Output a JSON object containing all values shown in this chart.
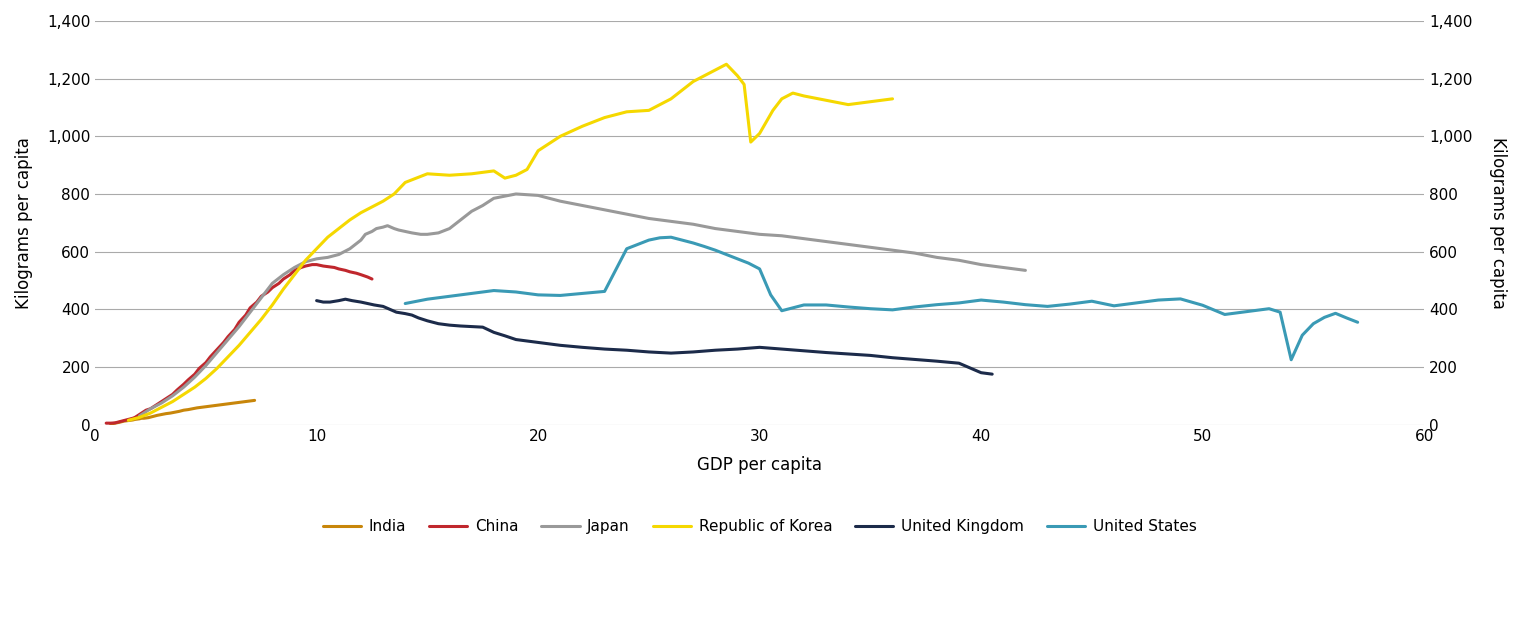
{
  "xlabel": "GDP per capita",
  "ylabel": "Kilograms per capita",
  "xlim": [
    0,
    60
  ],
  "ylim": [
    0,
    1400
  ],
  "xticks": [
    0,
    10,
    20,
    30,
    40,
    50,
    60
  ],
  "yticks": [
    0,
    200,
    400,
    600,
    800,
    1000,
    1200,
    1400
  ],
  "background_color": "#ffffff",
  "grid_color": "#aaaaaa",
  "series": {
    "India": {
      "color": "#C8860A",
      "gdp": [
        0.7,
        0.9,
        1.1,
        1.3,
        1.5,
        1.7,
        1.8,
        2.0,
        2.1,
        2.2,
        2.4,
        2.5,
        2.6,
        2.7,
        2.8,
        3.0,
        3.2,
        3.4,
        3.6,
        3.8,
        4.0,
        4.2,
        4.4,
        4.6,
        4.8,
        5.0,
        5.2,
        5.4,
        5.6,
        5.8,
        6.0,
        6.2,
        6.4,
        6.6,
        6.8,
        7.0,
        7.2
      ],
      "steel": [
        2,
        5,
        8,
        12,
        14,
        16,
        18,
        20,
        22,
        22,
        24,
        26,
        28,
        30,
        32,
        35,
        38,
        40,
        43,
        46,
        50,
        52,
        55,
        58,
        60,
        62,
        64,
        66,
        68,
        70,
        72,
        74,
        76,
        78,
        80,
        82,
        84
      ]
    },
    "China": {
      "color": "#C0272D",
      "gdp": [
        0.5,
        0.7,
        0.9,
        1.0,
        1.1,
        1.2,
        1.3,
        1.4,
        1.5,
        1.6,
        1.7,
        1.8,
        1.9,
        2.0,
        2.1,
        2.2,
        2.3,
        2.5,
        2.7,
        2.9,
        3.1,
        3.3,
        3.5,
        3.7,
        4.0,
        4.2,
        4.5,
        4.7,
        5.0,
        5.2,
        5.5,
        5.8,
        6.0,
        6.3,
        6.5,
        6.8,
        7.0,
        7.3,
        7.5,
        7.8,
        8.0,
        8.3,
        8.5,
        8.8,
        9.0,
        9.3,
        9.5,
        9.8,
        10.0,
        10.3,
        10.5,
        10.8,
        11.0,
        11.3,
        11.5,
        11.8,
        12.0,
        12.3,
        12.5
      ],
      "steel": [
        5,
        5,
        6,
        8,
        10,
        12,
        14,
        16,
        18,
        20,
        22,
        25,
        30,
        35,
        40,
        45,
        50,
        55,
        65,
        75,
        85,
        95,
        105,
        120,
        140,
        155,
        175,
        195,
        215,
        235,
        260,
        285,
        305,
        330,
        355,
        380,
        405,
        425,
        445,
        460,
        475,
        490,
        505,
        520,
        535,
        545,
        550,
        555,
        555,
        550,
        548,
        545,
        540,
        535,
        530,
        525,
        520,
        512,
        505
      ]
    },
    "Japan": {
      "color": "#999999",
      "gdp": [
        2.0,
        2.5,
        3.0,
        3.5,
        4.0,
        4.5,
        5.0,
        5.5,
        6.0,
        6.5,
        7.0,
        7.5,
        8.0,
        8.5,
        9.0,
        9.5,
        10.0,
        10.5,
        11.0,
        11.5,
        12.0,
        12.2,
        12.5,
        12.7,
        13.0,
        13.2,
        13.5,
        13.7,
        14.0,
        14.3,
        14.7,
        15.0,
        15.5,
        16.0,
        16.5,
        17.0,
        17.5,
        18.0,
        19.0,
        20.0,
        21.0,
        22.0,
        23.0,
        24.0,
        25.0,
        26.0,
        27.0,
        28.0,
        29.0,
        30.0,
        31.0,
        32.0,
        33.0,
        34.0,
        35.0,
        36.0,
        37.0,
        38.0,
        39.0,
        40.0,
        41.0,
        42.0
      ],
      "steel": [
        30,
        55,
        75,
        100,
        130,
        165,
        205,
        250,
        295,
        340,
        390,
        440,
        490,
        520,
        545,
        565,
        575,
        580,
        590,
        610,
        640,
        660,
        670,
        680,
        685,
        690,
        680,
        675,
        670,
        665,
        660,
        660,
        665,
        680,
        710,
        740,
        760,
        785,
        800,
        795,
        775,
        760,
        745,
        730,
        715,
        705,
        695,
        680,
        670,
        660,
        655,
        645,
        635,
        625,
        615,
        605,
        595,
        580,
        570,
        555,
        545,
        535
      ]
    },
    "Republic of Korea": {
      "color": "#F5D800",
      "gdp": [
        1.5,
        2.0,
        2.5,
        3.0,
        3.5,
        4.0,
        4.5,
        5.0,
        5.5,
        6.0,
        6.5,
        7.0,
        7.5,
        8.0,
        8.5,
        9.0,
        9.5,
        10.0,
        10.5,
        11.0,
        11.5,
        12.0,
        12.5,
        13.0,
        13.5,
        14.0,
        15.0,
        16.0,
        17.0,
        18.0,
        18.5,
        19.0,
        19.5,
        20.0,
        21.0,
        22.0,
        23.0,
        24.0,
        25.0,
        26.0,
        27.0,
        28.0,
        28.5,
        29.0,
        29.3,
        29.6,
        30.0,
        30.3,
        30.6,
        31.0,
        31.5,
        32.0,
        33.0,
        34.0,
        35.0,
        36.0
      ],
      "steel": [
        15,
        25,
        40,
        60,
        80,
        105,
        130,
        160,
        195,
        235,
        275,
        320,
        365,
        415,
        470,
        520,
        570,
        610,
        650,
        680,
        710,
        735,
        755,
        775,
        800,
        840,
        870,
        865,
        870,
        880,
        855,
        865,
        885,
        950,
        1000,
        1035,
        1065,
        1085,
        1090,
        1130,
        1190,
        1230,
        1250,
        1210,
        1180,
        980,
        1010,
        1050,
        1090,
        1130,
        1150,
        1140,
        1125,
        1110,
        1120,
        1130
      ]
    },
    "United Kingdom": {
      "color": "#1C2B4A",
      "gdp": [
        10.0,
        10.3,
        10.6,
        11.0,
        11.3,
        11.6,
        12.0,
        12.3,
        12.6,
        13.0,
        13.3,
        13.6,
        14.0,
        14.3,
        14.6,
        15.0,
        15.5,
        16.0,
        16.5,
        17.0,
        17.5,
        18.0,
        18.5,
        19.0,
        19.5,
        20.0,
        20.5,
        21.0,
        22.0,
        23.0,
        24.0,
        25.0,
        26.0,
        27.0,
        28.0,
        29.0,
        30.0,
        31.0,
        32.0,
        33.0,
        34.0,
        35.0,
        36.0,
        37.0,
        38.0,
        39.0,
        40.0,
        40.5
      ],
      "steel": [
        430,
        425,
        425,
        430,
        435,
        430,
        425,
        420,
        415,
        410,
        400,
        390,
        385,
        380,
        370,
        360,
        350,
        345,
        342,
        340,
        338,
        320,
        308,
        295,
        290,
        285,
        280,
        275,
        268,
        262,
        258,
        252,
        248,
        252,
        258,
        262,
        268,
        262,
        256,
        250,
        245,
        240,
        232,
        226,
        220,
        213,
        180,
        175
      ]
    },
    "United States": {
      "color": "#3A9AB5",
      "gdp": [
        14.0,
        15.0,
        16.0,
        17.0,
        18.0,
        19.0,
        20.0,
        21.0,
        22.0,
        23.0,
        24.0,
        25.0,
        25.5,
        26.0,
        26.5,
        27.0,
        27.5,
        28.0,
        28.5,
        29.0,
        29.5,
        30.0,
        30.5,
        31.0,
        31.5,
        32.0,
        33.0,
        34.0,
        35.0,
        36.0,
        37.0,
        38.0,
        39.0,
        40.0,
        41.0,
        42.0,
        43.0,
        44.0,
        45.0,
        46.0,
        47.0,
        48.0,
        49.0,
        50.0,
        51.0,
        52.0,
        53.0,
        53.5,
        54.0,
        54.5,
        55.0,
        55.5,
        56.0,
        56.5,
        57.0
      ],
      "steel": [
        420,
        435,
        445,
        455,
        465,
        460,
        450,
        448,
        455,
        462,
        610,
        640,
        648,
        650,
        640,
        630,
        618,
        605,
        590,
        575,
        560,
        540,
        450,
        395,
        405,
        415,
        415,
        408,
        402,
        398,
        408,
        416,
        422,
        432,
        425,
        416,
        410,
        418,
        428,
        412,
        422,
        432,
        436,
        414,
        382,
        392,
        402,
        390,
        225,
        310,
        350,
        372,
        386,
        370,
        355
      ]
    }
  },
  "legend_order": [
    "India",
    "China",
    "Japan",
    "Republic of Korea",
    "United Kingdom",
    "United States"
  ],
  "linewidth": 2.2
}
